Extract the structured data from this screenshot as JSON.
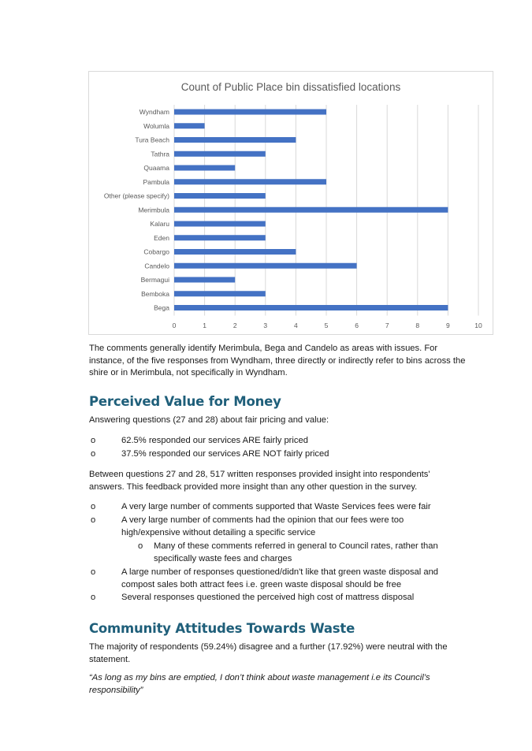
{
  "chart_data": {
    "type": "bar",
    "orientation": "horizontal",
    "title": "Count of Public Place bin dissatisfied locations",
    "categories": [
      "Wyndham",
      "Wolumla",
      "Tura Beach",
      "Tathra",
      "Quaama",
      "Pambula",
      "Other (please specify)",
      "Merimbula",
      "Kalaru",
      "Eden",
      "Cobargo",
      "Candelo",
      "Bermagui",
      "Bemboka",
      "Bega"
    ],
    "values": [
      5,
      1,
      4,
      3,
      2,
      5,
      3,
      9,
      3,
      3,
      4,
      6,
      2,
      3,
      9
    ],
    "xlim": [
      0,
      10
    ],
    "xticks": [
      "0",
      "1",
      "2",
      "3",
      "4",
      "5",
      "6",
      "7",
      "8",
      "9",
      "10"
    ],
    "grid": true,
    "bar_color": "#4472c4",
    "grid_color": "#d9d9d9"
  },
  "doc": {
    "intro_para": "The comments generally identify Merimbula, Bega and Candelo as areas with issues. For instance, of the five responses from Wyndham, three directly or indirectly refer to bins across the shire or in Merimbula, not specifically in Wyndham.",
    "section1": {
      "heading": "Perceived Value for Money",
      "lead": "Answering questions (27 and 28) about fair pricing and value:",
      "pricing_bullets": [
        "62.5% responded our services ARE fairly priced",
        "37.5% responded our services ARE NOT fairly priced"
      ],
      "para": "Between questions 27 and 28, 517 written responses provided insight into respondents' answers. This feedback provided more insight than any other question in the survey.",
      "bullets": [
        "A very large number of comments supported that Waste Services fees were fair",
        "A very large number of comments had the opinion that our fees were too high/expensive without detailing a specific service",
        "A large number of responses questioned/didn't like that green waste disposal and compost sales both attract fees i.e. green waste disposal should be free",
        "Several responses questioned the perceived high cost of mattress disposal"
      ],
      "sub_bullet": "Many of these comments referred in general to Council rates, rather than specifically waste fees and charges",
      "bullet_marker": "o"
    },
    "section2": {
      "heading": "Community Attitudes Towards Waste",
      "para": "The majority of respondents (59.24%) disagree and a further (17.92%) were neutral with the statement.",
      "quote": "“As long as my bins are emptied, I don’t think about waste management i.e its Council’s responsibility”"
    }
  }
}
